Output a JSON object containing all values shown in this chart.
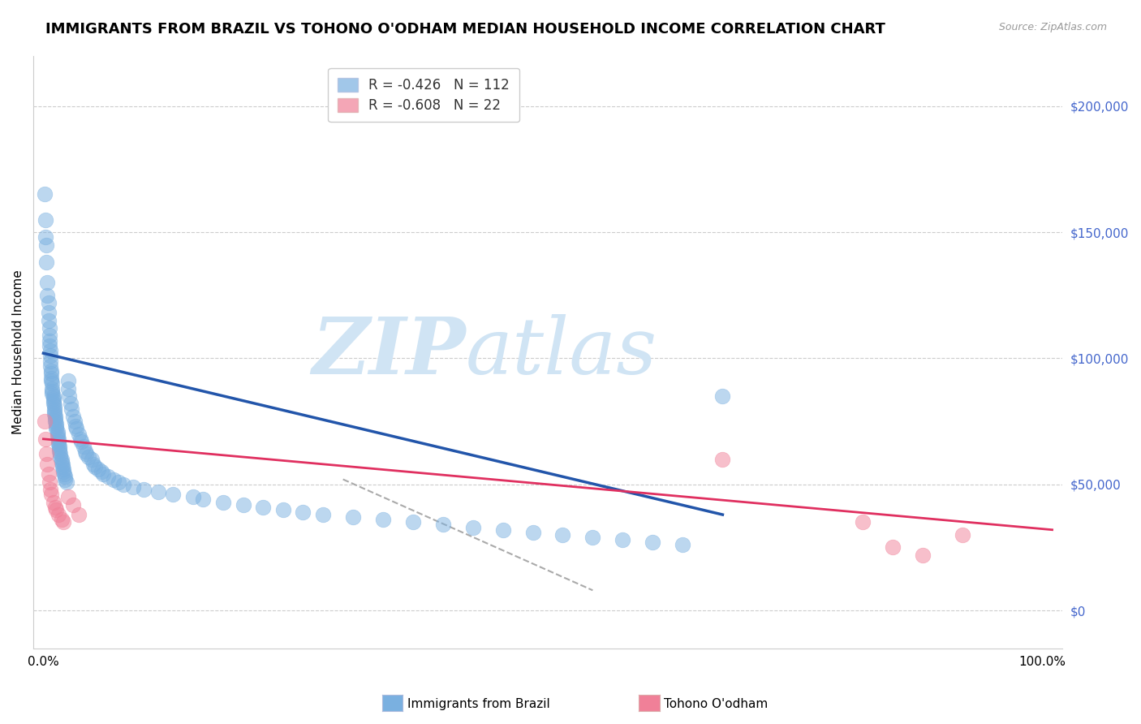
{
  "title": "IMMIGRANTS FROM BRAZIL VS TOHONO O'ODHAM MEDIAN HOUSEHOLD INCOME CORRELATION CHART",
  "source": "Source: ZipAtlas.com",
  "ylabel": "Median Household Income",
  "ytick_values": [
    0,
    50000,
    100000,
    150000,
    200000
  ],
  "ylim": [
    -15000,
    220000
  ],
  "xlim": [
    -0.01,
    1.02
  ],
  "brazil_color": "#7ab0e0",
  "tohono_color": "#f08098",
  "brazil_line_color": "#2255aa",
  "tohono_line_color": "#e03060",
  "dashed_line_color": "#aaaaaa",
  "watermark_zip": "ZIP",
  "watermark_atlas": "atlas",
  "watermark_color": "#d0e4f4",
  "brazil_scatter_x": [
    0.001,
    0.002,
    0.002,
    0.003,
    0.003,
    0.004,
    0.004,
    0.005,
    0.005,
    0.005,
    0.006,
    0.006,
    0.006,
    0.006,
    0.007,
    0.007,
    0.007,
    0.007,
    0.008,
    0.008,
    0.008,
    0.008,
    0.009,
    0.009,
    0.009,
    0.009,
    0.01,
    0.01,
    0.01,
    0.01,
    0.011,
    0.011,
    0.011,
    0.011,
    0.012,
    0.012,
    0.012,
    0.013,
    0.013,
    0.013,
    0.014,
    0.014,
    0.014,
    0.015,
    0.015,
    0.015,
    0.016,
    0.016,
    0.016,
    0.017,
    0.017,
    0.018,
    0.018,
    0.019,
    0.019,
    0.02,
    0.02,
    0.021,
    0.022,
    0.022,
    0.023,
    0.025,
    0.025,
    0.026,
    0.027,
    0.028,
    0.03,
    0.031,
    0.032,
    0.033,
    0.035,
    0.037,
    0.038,
    0.04,
    0.042,
    0.043,
    0.045,
    0.048,
    0.05,
    0.052,
    0.055,
    0.058,
    0.06,
    0.065,
    0.07,
    0.075,
    0.08,
    0.09,
    0.1,
    0.115,
    0.13,
    0.15,
    0.16,
    0.18,
    0.2,
    0.22,
    0.24,
    0.26,
    0.28,
    0.31,
    0.34,
    0.37,
    0.4,
    0.43,
    0.46,
    0.49,
    0.52,
    0.55,
    0.58,
    0.61,
    0.64,
    0.68
  ],
  "brazil_scatter_y": [
    165000,
    155000,
    148000,
    145000,
    138000,
    130000,
    125000,
    122000,
    118000,
    115000,
    112000,
    109000,
    107000,
    105000,
    103000,
    101000,
    99000,
    97000,
    95000,
    94000,
    92000,
    91000,
    90000,
    88000,
    87000,
    86000,
    85000,
    84000,
    83000,
    82000,
    81000,
    80000,
    79000,
    78000,
    77000,
    76000,
    75000,
    74000,
    73000,
    72000,
    71000,
    70000,
    69000,
    68000,
    67000,
    66000,
    65000,
    64000,
    63000,
    62000,
    61000,
    60000,
    59000,
    58000,
    57000,
    56000,
    55000,
    54000,
    53000,
    52000,
    51000,
    91000,
    88000,
    85000,
    82000,
    80000,
    77000,
    75000,
    73000,
    72000,
    70000,
    68000,
    67000,
    65000,
    63000,
    62000,
    61000,
    60000,
    58000,
    57000,
    56000,
    55000,
    54000,
    53000,
    52000,
    51000,
    50000,
    49000,
    48000,
    47000,
    46000,
    45000,
    44000,
    43000,
    42000,
    41000,
    40000,
    39000,
    38000,
    37000,
    36000,
    35000,
    34000,
    33000,
    32000,
    31000,
    30000,
    29000,
    28000,
    27000,
    26000,
    85000
  ],
  "tohono_scatter_x": [
    0.001,
    0.002,
    0.003,
    0.004,
    0.005,
    0.006,
    0.007,
    0.008,
    0.01,
    0.012,
    0.013,
    0.015,
    0.018,
    0.02,
    0.025,
    0.03,
    0.035,
    0.68,
    0.82,
    0.85,
    0.88,
    0.92
  ],
  "tohono_scatter_y": [
    75000,
    68000,
    62000,
    58000,
    54000,
    51000,
    48000,
    46000,
    43000,
    41000,
    40000,
    38000,
    36000,
    35000,
    45000,
    42000,
    38000,
    60000,
    35000,
    25000,
    22000,
    30000
  ],
  "brazil_trend_x": [
    0.0,
    0.68
  ],
  "brazil_trend_y": [
    102000,
    38000
  ],
  "tohono_trend_x": [
    0.0,
    1.01
  ],
  "tohono_trend_y": [
    68000,
    32000
  ],
  "dashed_trend_x": [
    0.3,
    0.55
  ],
  "dashed_trend_y": [
    52000,
    8000
  ],
  "grid_color": "#cccccc",
  "background_color": "#ffffff",
  "title_fontsize": 13,
  "axis_label_fontsize": 11,
  "tick_fontsize": 11,
  "right_tick_color": "#4466cc"
}
